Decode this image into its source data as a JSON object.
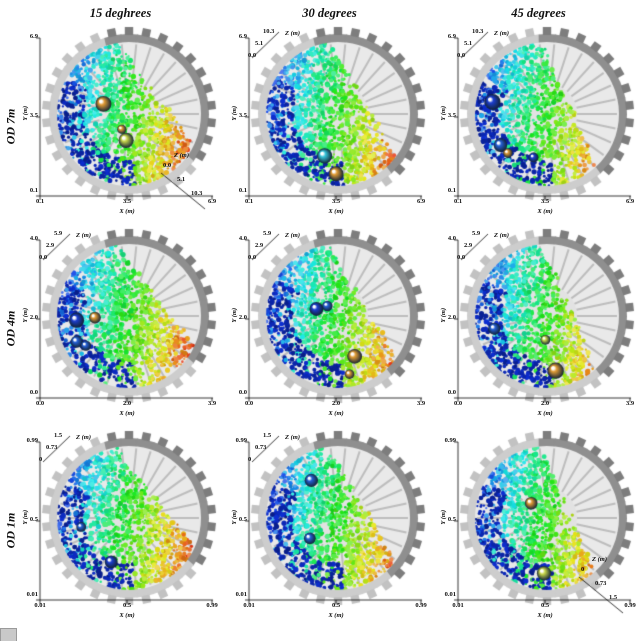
{
  "figure": {
    "column_headers": [
      "15 deghrees",
      "30 degrees",
      "45 degrees"
    ],
    "row_headers": [
      "OD 7m",
      "OD 4m",
      "OD 1m"
    ]
  },
  "colors": {
    "particle_colormap": [
      "#1b3fd0",
      "#2bb6d8",
      "#7ed83c",
      "#e8e03a",
      "#ef8c2a",
      "#d83a20"
    ],
    "drum_light": "#cdcdcd",
    "drum_dark": "#8f8f8f"
  },
  "panels": [
    {
      "row": 0,
      "col": 0,
      "x_label": "X (m)",
      "y_label": "Y (m)",
      "z_label": "Z (m)",
      "x_ticks": [
        "0.1",
        "3.5",
        "6.9"
      ],
      "y_ticks": [
        "6.9",
        "3.5",
        "0.1"
      ],
      "z_ticks": [
        "0.0",
        "5.1",
        "10.3"
      ],
      "z_pos": "br"
    },
    {
      "row": 0,
      "col": 1,
      "x_label": "X (m)",
      "y_label": "Y (m)",
      "z_label": "Z (m)",
      "x_ticks": [
        "0.1",
        "3.5",
        "6.9"
      ],
      "y_ticks": [
        "6.9",
        "3.5",
        "0.1"
      ],
      "z_ticks": [
        "0.0",
        "5.1",
        "10.3"
      ],
      "z_pos": "tl"
    },
    {
      "row": 0,
      "col": 2,
      "x_label": "X (m)",
      "y_label": "Y (m)",
      "z_label": "Z (m)",
      "x_ticks": [
        "0.1",
        "3.5",
        "6.9"
      ],
      "y_ticks": [
        "6.9",
        "3.5",
        "0.1"
      ],
      "z_ticks": [
        "0.0",
        "5.1",
        "10.3"
      ],
      "z_pos": "tl"
    },
    {
      "row": 1,
      "col": 0,
      "x_label": "X (m)",
      "y_label": "Y (m)",
      "z_label": "Z (m)",
      "x_ticks": [
        "0.0",
        "2.0",
        "3.9"
      ],
      "y_ticks": [
        "4.0",
        "2.0",
        "0.0"
      ],
      "z_ticks": [
        "0.0",
        "2.9",
        "5.9"
      ],
      "z_pos": "tl"
    },
    {
      "row": 1,
      "col": 1,
      "x_label": "X (m)",
      "y_label": "Y (m)",
      "z_label": "Z (m)",
      "x_ticks": [
        "0.0",
        "2.0",
        "3.9"
      ],
      "y_ticks": [
        "4.0",
        "2.0",
        "0.0"
      ],
      "z_ticks": [
        "0.0",
        "2.9",
        "5.9"
      ],
      "z_pos": "tl"
    },
    {
      "row": 1,
      "col": 2,
      "x_label": "X (m)",
      "y_label": "Y (m)",
      "z_label": "Z (m)",
      "x_ticks": [
        "0.0",
        "2.0",
        "3.9"
      ],
      "y_ticks": [
        "4.0",
        "2.0",
        "0.0"
      ],
      "z_ticks": [
        "0.0",
        "2.9",
        "5.9"
      ],
      "z_pos": "tl"
    },
    {
      "row": 2,
      "col": 0,
      "x_label": "X (m)",
      "y_label": "Y (m)",
      "z_label": "Z (m)",
      "x_ticks": [
        "0.01",
        "0.5",
        "0.99"
      ],
      "y_ticks": [
        "0.99",
        "0.5",
        "0.01"
      ],
      "z_ticks": [
        "0",
        "0.73",
        "1.5"
      ],
      "z_pos": "tl"
    },
    {
      "row": 2,
      "col": 1,
      "x_label": "X (m)",
      "y_label": "Y (m)",
      "z_label": "Z (m)",
      "x_ticks": [
        "0.01",
        "0.5",
        "0.99"
      ],
      "y_ticks": [
        "0.99",
        "0.5",
        "0.01"
      ],
      "z_ticks": [
        "0",
        "0.73",
        "1.5"
      ],
      "z_pos": "tl"
    },
    {
      "row": 2,
      "col": 2,
      "x_label": "X (m)",
      "y_label": "Y (m)",
      "z_label": "Z (m)",
      "x_ticks": [
        "0.01",
        "0.5",
        "0.99"
      ],
      "y_ticks": [
        "0.99",
        "0.5",
        "0.01"
      ],
      "z_ticks": [
        "0",
        "0.73",
        "1.5"
      ],
      "z_pos": "br"
    }
  ],
  "chart_data": [
    {
      "type": "scatter",
      "title": "OD 7m — 15 deghrees",
      "xlabel": "X (m)",
      "ylabel": "Y (m)",
      "zlabel": "Z (m)",
      "xlim": [
        0.1,
        6.9
      ],
      "ylim": [
        0.1,
        6.9
      ],
      "zlim": [
        0.0,
        10.3
      ],
      "content": "3D render of rainbow-colored granular particles (blue lower-left through cyan/green/yellow to red at right) filling a toothed rotating drum; empty gray drum wall visible at upper right; no discrete labeled data points"
    },
    {
      "type": "scatter",
      "title": "OD 7m — 30 degrees",
      "xlabel": "X (m)",
      "ylabel": "Y (m)",
      "zlabel": "Z (m)",
      "xlim": [
        0.1,
        6.9
      ],
      "ylim": [
        0.1,
        6.9
      ],
      "zlim": [
        0.0,
        10.3
      ],
      "content": "3D particle-filled toothed drum, rainbow colormap, gap at upper right"
    },
    {
      "type": "scatter",
      "title": "OD 7m — 45 degrees",
      "xlabel": "X (m)",
      "ylabel": "Y (m)",
      "zlabel": "Z (m)",
      "xlim": [
        0.1,
        6.9
      ],
      "ylim": [
        0.1,
        6.9
      ],
      "zlim": [
        0.0,
        10.3
      ],
      "content": "3D particle-filled toothed drum, rainbow colormap, larger gap at upper right"
    },
    {
      "type": "scatter",
      "title": "OD 4m — 15 deghrees",
      "xlabel": "X (m)",
      "ylabel": "Y (m)",
      "zlabel": "Z (m)",
      "xlim": [
        0.0,
        3.9
      ],
      "ylim": [
        0.0,
        4.0
      ],
      "zlim": [
        0.0,
        5.9
      ],
      "content": "3D particle-filled toothed drum, rainbow colormap, large colored spheres near bottom"
    },
    {
      "type": "scatter",
      "title": "OD 4m — 30 degrees",
      "xlabel": "X (m)",
      "ylabel": "Y (m)",
      "zlabel": "Z (m)",
      "xlim": [
        0.0,
        3.9
      ],
      "ylim": [
        0.0,
        4.0
      ],
      "zlim": [
        0.0,
        5.9
      ],
      "content": "3D particle-filled toothed drum, rainbow colormap, large colored spheres near bottom"
    },
    {
      "type": "scatter",
      "title": "OD 4m — 45 degrees",
      "xlabel": "X (m)",
      "ylabel": "Y (m)",
      "zlabel": "Z (m)",
      "xlim": [
        0.0,
        3.9
      ],
      "ylim": [
        0.0,
        4.0
      ],
      "zlim": [
        0.0,
        5.9
      ],
      "content": "3D particle-filled toothed drum, rainbow colormap, large colored spheres near bottom"
    },
    {
      "type": "scatter",
      "title": "OD 1m — 15 deghrees",
      "xlabel": "X (m)",
      "ylabel": "Y (m)",
      "zlabel": "Z (m)",
      "xlim": [
        0.01,
        0.99
      ],
      "ylim": [
        0.01,
        0.99
      ],
      "zlim": [
        0,
        1.5
      ],
      "content": "3D particle-filled toothed drum, rainbow colormap"
    },
    {
      "type": "scatter",
      "title": "OD 1m — 30 degrees",
      "xlabel": "X (m)",
      "ylabel": "Y (m)",
      "zlabel": "Z (m)",
      "xlim": [
        0.01,
        0.99
      ],
      "ylim": [
        0.01,
        0.99
      ],
      "zlim": [
        0,
        1.5
      ],
      "content": "3D particle-filled toothed drum, rainbow colormap"
    },
    {
      "type": "scatter",
      "title": "OD 1m — 45 degrees",
      "xlabel": "X (m)",
      "ylabel": "Y (m)",
      "zlabel": "Z (m)",
      "xlim": [
        0.01,
        0.99
      ],
      "ylim": [
        0.01,
        0.99
      ],
      "zlim": [
        0,
        1.5
      ],
      "content": "3D particle-filled toothed drum, rainbow colormap"
    }
  ]
}
